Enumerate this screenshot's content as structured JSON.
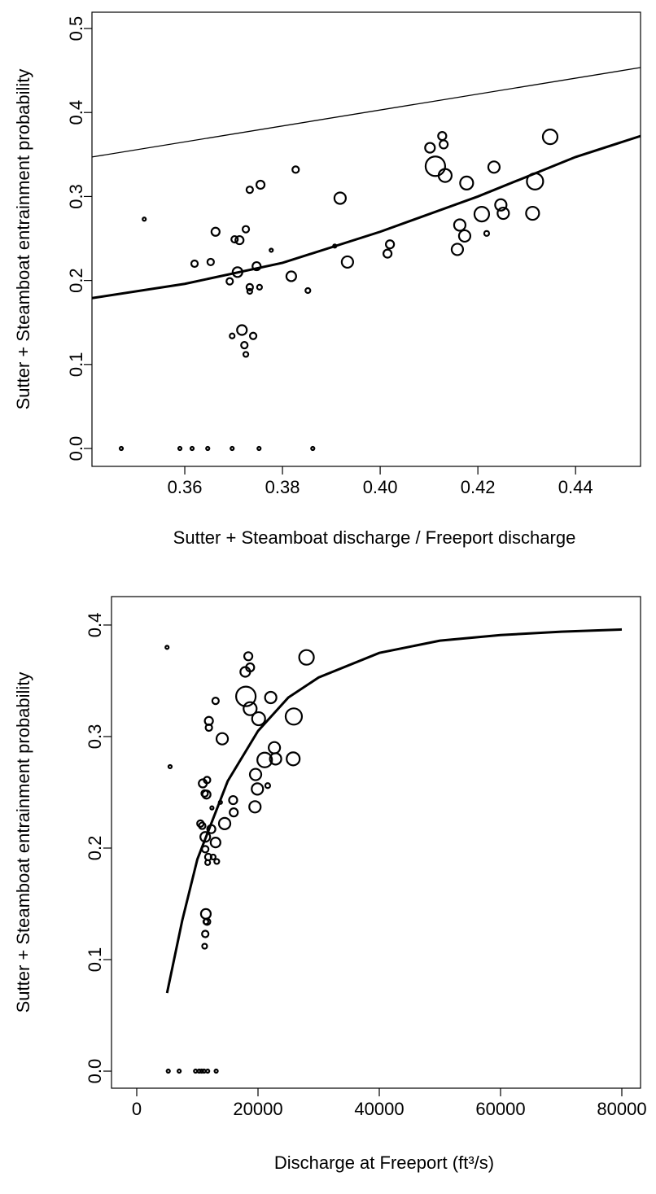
{
  "chart_data": [
    {
      "type": "scatter",
      "x_label": "Sutter + Steamboat discharge / Freeport discharge",
      "y_label": "Sutter + Steamboat entrainment probability",
      "xlim": [
        0.341,
        0.4533
      ],
      "ylim": [
        -0.0213,
        0.5194
      ],
      "xticks": [
        {
          "value": 0.36,
          "label": "0.36"
        },
        {
          "value": 0.38,
          "label": "0.38"
        },
        {
          "value": 0.4,
          "label": "0.40"
        },
        {
          "value": 0.42,
          "label": "0.42"
        },
        {
          "value": 0.44,
          "label": "0.44"
        }
      ],
      "yticks": [
        {
          "value": 0,
          "label": "0.0"
        },
        0.1,
        0.2,
        0.3,
        0.4,
        0.5
      ],
      "color": "#000000",
      "x": [
        0.347,
        0.359,
        0.3615,
        0.3647,
        0.3697,
        0.3752,
        0.3862,
        0.3517,
        0.362,
        0.3653,
        0.3663,
        0.3692,
        0.3702,
        0.3712,
        0.3708,
        0.3697,
        0.3717,
        0.3722,
        0.3725,
        0.3725,
        0.3733,
        0.3733,
        0.3733,
        0.374,
        0.3747,
        0.3753,
        0.3755,
        0.3777,
        0.3818,
        0.3827,
        0.3852,
        0.3907,
        0.3918,
        0.3933,
        0.4015,
        0.402,
        0.4102,
        0.4113,
        0.4127,
        0.413,
        0.4133,
        0.4158,
        0.4163,
        0.4173,
        0.4177,
        0.4208,
        0.4218,
        0.4233,
        0.4247,
        0.4252,
        0.4312,
        0.4317,
        0.4348
      ],
      "values": [
        0,
        0,
        0,
        0,
        0,
        0,
        0,
        0.273,
        0.22,
        0.222,
        0.258,
        0.199,
        0.249,
        0.248,
        0.21,
        0.134,
        0.141,
        0.123,
        0.112,
        0.261,
        0.308,
        0.192,
        0.187,
        0.134,
        0.217,
        0.192,
        0.314,
        0.236,
        0.205,
        0.332,
        0.188,
        0.241,
        0.298,
        0.222,
        0.232,
        0.243,
        0.358,
        0.336,
        0.372,
        0.362,
        0.325,
        0.237,
        0.266,
        0.253,
        0.316,
        0.279,
        0.256,
        0.335,
        0.29,
        0.28,
        0.28,
        0.318,
        0.371
      ],
      "sizes": [
        2,
        2,
        2,
        2,
        2,
        2,
        2,
        2,
        4,
        4,
        5,
        4,
        4,
        5,
        6,
        3,
        6,
        4,
        3,
        4,
        4,
        4,
        3,
        4,
        5,
        3,
        5,
        2,
        6,
        4,
        3,
        2,
        7,
        7,
        5,
        5,
        6,
        12,
        5,
        5,
        8,
        7,
        7,
        7,
        8,
        9,
        3,
        7,
        7,
        7,
        8,
        10,
        9
      ],
      "lines": [
        {
          "color": "#000000",
          "linewidth": 1.3,
          "x": [
            0.341,
            0.4533
          ],
          "values": [
            0.347,
            0.4535
          ]
        },
        {
          "color": "#000000",
          "linewidth": 3,
          "x": [
            0.341,
            0.36,
            0.38,
            0.4,
            0.42,
            0.44,
            0.4533
          ],
          "values": [
            0.179,
            0.196,
            0.221,
            0.258,
            0.3,
            0.347,
            0.372
          ]
        }
      ]
    },
    {
      "type": "scatter",
      "x_label": "Discharge at Freeport (ft³/s)",
      "y_label": "Sutter + Steamboat entrainment probability",
      "xlim": [
        -4161,
        83087
      ],
      "ylim": [
        -0.0153,
        0.4255
      ],
      "xticks": [
        0,
        20000,
        40000,
        60000,
        80000
      ],
      "yticks": [
        {
          "value": 0,
          "label": "0.0"
        },
        0.1,
        0.2,
        0.3,
        0.4
      ],
      "color": "#000000",
      "x": [
        5200,
        7000,
        9700,
        10300,
        10700,
        11100,
        11700,
        13100,
        5000,
        5500,
        10500,
        10800,
        10900,
        11300,
        11200,
        11500,
        11300,
        11400,
        11400,
        11300,
        11200,
        11600,
        11900,
        11800,
        11700,
        11600,
        12300,
        12600,
        11900,
        12400,
        13000,
        13000,
        13200,
        13800,
        14100,
        14500,
        16000,
        15900,
        17900,
        18000,
        18400,
        18700,
        18700,
        19500,
        19600,
        19900,
        20100,
        21100,
        21600,
        22100,
        22700,
        22900,
        25800,
        25900,
        28000
      ],
      "values": [
        0,
        0,
        0,
        0,
        0,
        0,
        0,
        0,
        0.38,
        0.273,
        0.222,
        0.22,
        0.258,
        0.199,
        0.249,
        0.248,
        0.21,
        0.134,
        0.141,
        0.123,
        0.112,
        0.261,
        0.308,
        0.192,
        0.187,
        0.134,
        0.217,
        0.192,
        0.314,
        0.236,
        0.205,
        0.332,
        0.188,
        0.241,
        0.298,
        0.222,
        0.232,
        0.243,
        0.358,
        0.336,
        0.372,
        0.362,
        0.325,
        0.237,
        0.266,
        0.253,
        0.316,
        0.279,
        0.256,
        0.335,
        0.29,
        0.28,
        0.28,
        0.318,
        0.371
      ],
      "sizes": [
        2,
        2,
        2,
        2,
        2,
        2,
        2,
        2,
        2,
        2,
        4,
        4,
        5,
        4,
        4,
        5,
        6,
        3,
        6,
        4,
        3,
        4,
        4,
        4,
        3,
        4,
        5,
        3,
        5,
        2,
        6,
        4,
        3,
        2,
        7,
        7,
        5,
        5,
        6,
        12,
        5,
        5,
        8,
        7,
        7,
        7,
        8,
        9,
        3,
        7,
        7,
        7,
        8,
        10,
        9
      ],
      "lines": [
        {
          "color": "#000000",
          "linewidth": 3,
          "x": [
            5000,
            7500,
            10000,
            15000,
            20000,
            25000,
            30000,
            40000,
            50000,
            60000,
            70000,
            80000
          ],
          "values": [
            0.07,
            0.135,
            0.19,
            0.26,
            0.305,
            0.335,
            0.353,
            0.375,
            0.386,
            0.391,
            0.394,
            0.396
          ]
        }
      ]
    }
  ]
}
